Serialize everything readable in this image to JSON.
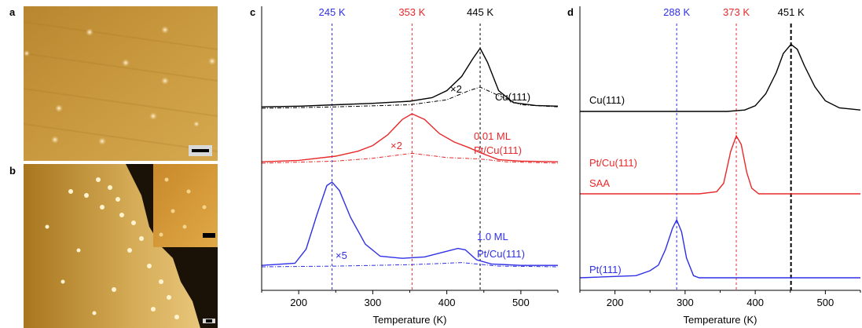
{
  "panels": {
    "a": {
      "letter": "a"
    },
    "b": {
      "letter": "b"
    },
    "c": {
      "letter": "c"
    },
    "d": {
      "letter": "d"
    }
  },
  "colors": {
    "black": "#000000",
    "red": "#e8282a",
    "blue": "#2f2fe6",
    "stm_gold": "#c89a3c",
    "stm_dark": "#2a1a05"
  },
  "chart_data": [
    {
      "panel": "c",
      "type": "line",
      "xlabel": "Temperature (K)",
      "ylabel": "",
      "xlim": [
        150,
        550
      ],
      "xticks": [
        200,
        300,
        400,
        500
      ],
      "grid": false,
      "vlines": [
        {
          "x": 245,
          "label": "245 K",
          "color": "#2f2fe6"
        },
        {
          "x": 353,
          "label": "353 K",
          "color": "#e8282a"
        },
        {
          "x": 445,
          "label": "445 K",
          "color": "#000000"
        }
      ],
      "series": [
        {
          "name": "Cu(111)",
          "color": "#000000",
          "offset": 3.0,
          "x": [
            150,
            200,
            250,
            300,
            350,
            380,
            400,
            420,
            435,
            445,
            455,
            470,
            490,
            520,
            550
          ],
          "y": [
            0.02,
            0.03,
            0.05,
            0.07,
            0.1,
            0.15,
            0.25,
            0.45,
            0.7,
            0.85,
            0.65,
            0.25,
            0.08,
            0.04,
            0.03
          ],
          "scaled": {
            "factor": "×2",
            "x": [
              150,
              250,
              350,
              400,
              430,
              445,
              470,
              500,
              550
            ],
            "y": [
              0.0,
              0.02,
              0.05,
              0.12,
              0.25,
              0.3,
              0.18,
              0.05,
              0.02
            ]
          }
        },
        {
          "name": "0.01 ML Pt/Cu(111)",
          "label_lines": [
            "0.01 ML",
            "Pt/Cu(111)"
          ],
          "color": "#e8282a",
          "offset": 1.75,
          "x": [
            150,
            200,
            250,
            280,
            300,
            320,
            340,
            353,
            370,
            390,
            410,
            430,
            445,
            470,
            500,
            550
          ],
          "y": [
            0.02,
            0.04,
            0.1,
            0.17,
            0.25,
            0.4,
            0.62,
            0.7,
            0.62,
            0.42,
            0.3,
            0.22,
            0.15,
            0.05,
            0.03,
            0.02
          ],
          "scaled": {
            "factor": "×2",
            "x": [
              150,
              250,
              300,
              353,
              400,
              445,
              480,
              550
            ],
            "y": [
              0.0,
              0.03,
              0.07,
              0.14,
              0.08,
              0.06,
              0.02,
              0.0
            ]
          }
        },
        {
          "name": "1.0 ML Pt/Cu(111)",
          "label_lines": [
            "1.0 ML",
            "Pt/Cu(111)"
          ],
          "color": "#2f2fe6",
          "offset": 0.0,
          "x": [
            150,
            195,
            210,
            225,
            238,
            245,
            255,
            270,
            290,
            310,
            340,
            370,
            400,
            415,
            425,
            440,
            460,
            500,
            550
          ],
          "y": [
            0.02,
            0.05,
            0.25,
            0.75,
            1.15,
            1.2,
            1.08,
            0.7,
            0.32,
            0.15,
            0.12,
            0.14,
            0.22,
            0.26,
            0.24,
            0.1,
            0.04,
            0.02,
            0.02
          ],
          "scaled": {
            "factor": "×5",
            "x": [
              150,
              250,
              350,
              400,
              420,
              440,
              470,
              550
            ],
            "y": [
              0.0,
              0.01,
              0.03,
              0.05,
              0.06,
              0.04,
              0.01,
              0.0
            ]
          }
        }
      ]
    },
    {
      "panel": "d",
      "type": "line",
      "xlabel": "Temperature (K)",
      "ylabel": "",
      "xlim": [
        150,
        550
      ],
      "xticks": [
        200,
        300,
        400,
        500
      ],
      "grid": false,
      "vlines": [
        {
          "x": 288,
          "label": "288 K",
          "color": "#2f2fe6"
        },
        {
          "x": 373,
          "label": "373 K",
          "color": "#e8282a"
        },
        {
          "x": 451,
          "label": "451 K",
          "color": "#000000"
        }
      ],
      "series": [
        {
          "name": "Cu(111)",
          "color": "#000000",
          "offset": 2.0,
          "x": [
            150,
            360,
            385,
            400,
            415,
            430,
            440,
            451,
            460,
            470,
            485,
            500,
            520,
            550
          ],
          "y": [
            0.0,
            0.0,
            0.02,
            0.08,
            0.25,
            0.55,
            0.82,
            0.95,
            0.88,
            0.65,
            0.35,
            0.15,
            0.05,
            0.02
          ]
        },
        {
          "name": "Pt/Cu(111) SAA",
          "label_lines": [
            "Pt/Cu(111)",
            "SAA"
          ],
          "color": "#e8282a",
          "offset": 1.0,
          "x": [
            150,
            320,
            345,
            355,
            365,
            373,
            380,
            388,
            395,
            405,
            550
          ],
          "y": [
            0.0,
            0.0,
            0.03,
            0.15,
            0.6,
            0.82,
            0.7,
            0.3,
            0.08,
            0.0,
            0.0
          ]
        },
        {
          "name": "Pt(111)",
          "color": "#2f2fe6",
          "offset": 0.0,
          "x": [
            150,
            230,
            250,
            262,
            272,
            282,
            288,
            295,
            302,
            312,
            320,
            550
          ],
          "y": [
            0.0,
            0.03,
            0.1,
            0.18,
            0.4,
            0.7,
            0.82,
            0.65,
            0.28,
            0.03,
            0.0,
            0.0
          ]
        }
      ]
    }
  ]
}
